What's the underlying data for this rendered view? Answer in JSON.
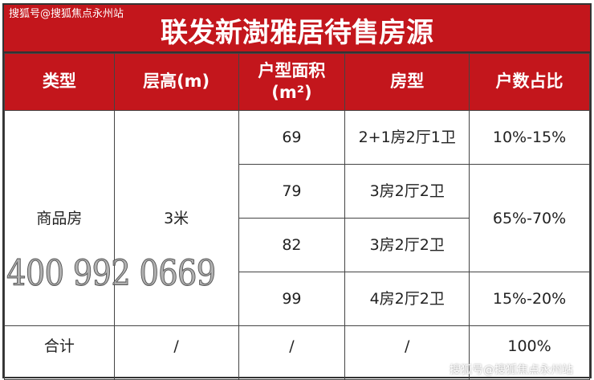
{
  "title": "联发新澍雅居待售房源",
  "watermark_top": "搜狐号@搜狐焦点永州站",
  "watermark_bottom": "搜狐号@搜狐焦点永州站",
  "phone_overlay": "400 992 0669",
  "headers": [
    "类型",
    "层高(m)",
    "户型面积",
    "(m²)",
    "房型",
    "户数占比"
  ],
  "rows": {
    "type": "商品房",
    "height": "3米",
    "items": [
      {
        "area": "69",
        "layout": "2+1房2厅1卫",
        "ratio": "10%-15%"
      },
      {
        "area": "79",
        "layout": "3房2厅2卫",
        "ratio": "65%-70%"
      },
      {
        "area": "82",
        "layout": "3房2厅2卫"
      },
      {
        "area": "99",
        "layout": "4房2厅2卫",
        "ratio": "15%-20%"
      }
    ]
  },
  "total": {
    "label": "合计",
    "height": "/",
    "area": "/",
    "layout": "/",
    "ratio": "100%"
  },
  "colors": {
    "header_red": "#c3161c"
  }
}
